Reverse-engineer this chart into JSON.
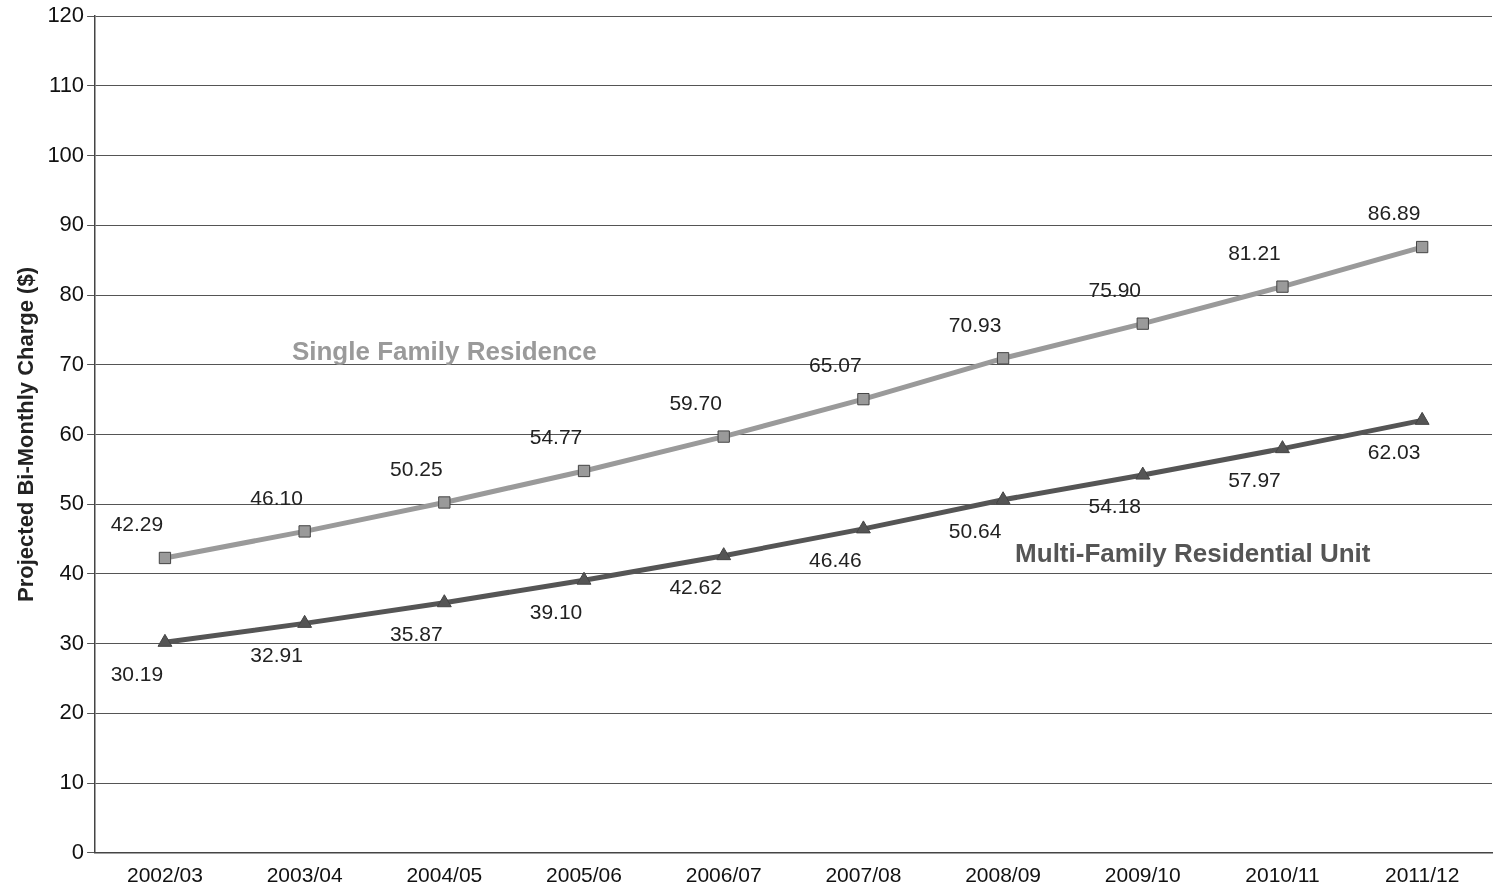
{
  "chart_data": {
    "type": "line",
    "ylabel": "Projected Bi-Monthly Charge ($)",
    "categories": [
      "2002/03",
      "2003/04",
      "2004/05",
      "2005/06",
      "2006/07",
      "2007/08",
      "2008/09",
      "2009/10",
      "2010/11",
      "2011/12"
    ],
    "series": [
      {
        "name": "Single Family Residence",
        "color": "#9a9a9a",
        "marker": "square",
        "values": [
          42.29,
          46.1,
          50.25,
          54.77,
          59.7,
          65.07,
          70.93,
          75.9,
          81.21,
          86.89
        ],
        "value_labels": [
          "42.29",
          "46.10",
          "50.25",
          "54.77",
          "59.70",
          "65.07",
          "70.93",
          "75.90",
          "81.21",
          "86.89"
        ]
      },
      {
        "name": "Multi-Family Residential Unit",
        "color": "#555555",
        "marker": "triangle",
        "values": [
          30.19,
          32.91,
          35.87,
          39.1,
          42.62,
          46.46,
          50.64,
          54.18,
          57.97,
          62.03
        ],
        "value_labels": [
          "30.19",
          "32.91",
          "35.87",
          "39.10",
          "42.62",
          "46.46",
          "50.64",
          "54.18",
          "57.97",
          "62.03"
        ]
      }
    ],
    "ylim": [
      0,
      120
    ],
    "yticks": [
      0,
      10,
      20,
      30,
      40,
      50,
      60,
      70,
      80,
      90,
      100,
      110,
      120
    ],
    "grid": "y",
    "legend": false,
    "line_style": "solid"
  }
}
